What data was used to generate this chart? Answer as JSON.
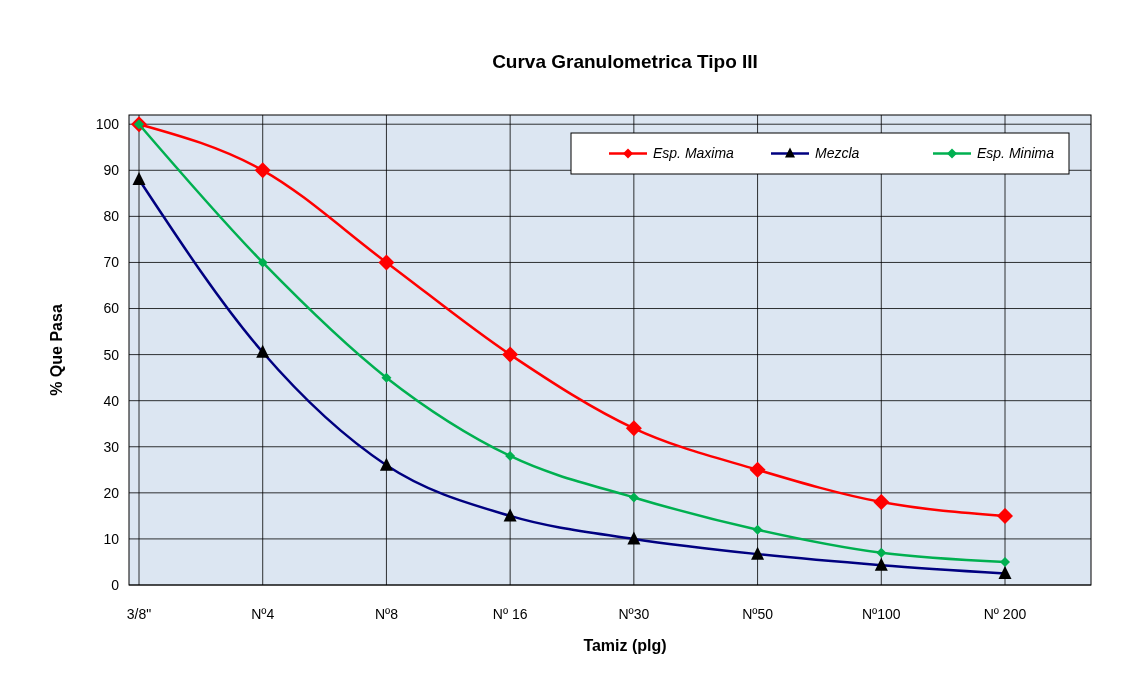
{
  "chart_data": {
    "type": "line",
    "title": "Curva Granulometrica Tipo III",
    "xlabel": "Tamiz (plg)",
    "ylabel": "% Que Pasa",
    "categories": [
      "3/8\"",
      "Nº4",
      "Nº8",
      "Nº 16",
      "Nº30",
      "Nº50",
      "Nº100",
      "Nº 200"
    ],
    "ylim": [
      0,
      102
    ],
    "yticks": [
      0,
      10,
      20,
      30,
      40,
      50,
      60,
      70,
      80,
      90,
      100
    ],
    "grid": true,
    "legend": "top right",
    "line_style": "solid",
    "series": [
      {
        "name": "Esp. Maxima",
        "color": "#ff0000",
        "marker": "diamond",
        "values": [
          100,
          90,
          70,
          50,
          34,
          25,
          18,
          15
        ]
      },
      {
        "name": "Mezcla",
        "color": "#000080",
        "marker": "triangle",
        "values": [
          88,
          50.5,
          26,
          15,
          10,
          6.7,
          4.3,
          2.5
        ]
      },
      {
        "name": "Esp. Minima",
        "color": "#00b050",
        "marker": "diamond",
        "values": [
          100,
          70,
          45,
          28,
          19,
          12,
          7,
          5
        ]
      }
    ]
  }
}
